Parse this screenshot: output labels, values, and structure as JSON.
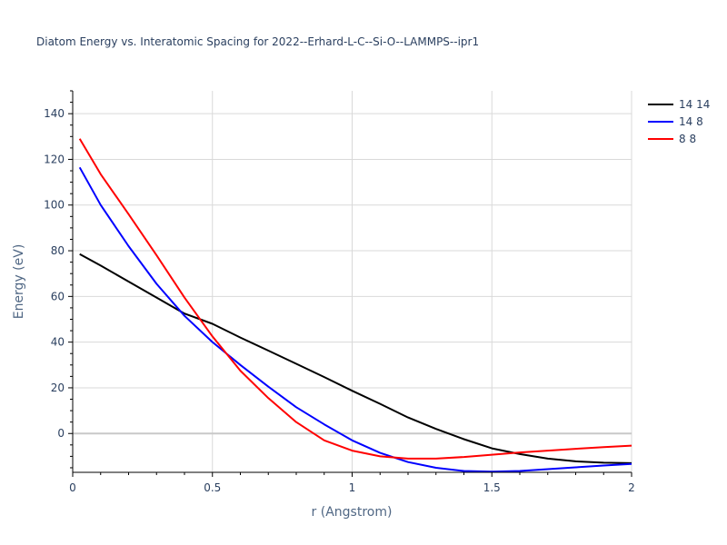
{
  "chart_data": {
    "type": "line",
    "title": "Diatom Energy vs. Interatomic Spacing for 2022--Erhard-L-C--Si-O--LAMMPS--ipr1",
    "xlabel": "r (Angstrom)",
    "ylabel": "Energy (eV)",
    "xlim": [
      0,
      2
    ],
    "ylim": [
      -17,
      150
    ],
    "x_ticks": [
      0,
      0.5,
      1,
      1.5,
      2
    ],
    "x_tick_labels": [
      "0",
      "0.5",
      "1",
      "1.5",
      "2"
    ],
    "y_ticks": [
      0,
      20,
      40,
      60,
      80,
      100,
      120,
      140
    ],
    "y_tick_labels": [
      "0",
      "20",
      "40",
      "60",
      "80",
      "100",
      "120",
      "140"
    ],
    "grid": true,
    "legend_position": "top-right",
    "series": [
      {
        "name": "14 14",
        "color": "#000000",
        "x": [
          0.025,
          0.1,
          0.2,
          0.3,
          0.4,
          0.5,
          0.6,
          0.7,
          0.8,
          0.9,
          1.0,
          1.1,
          1.2,
          1.3,
          1.4,
          1.5,
          1.6,
          1.7,
          1.8,
          1.9,
          2.0
        ],
        "y": [
          78.5,
          73.5,
          66.5,
          59.5,
          52.5,
          48.0,
          42.0,
          36.3,
          30.5,
          24.7,
          18.7,
          13.0,
          7.0,
          2.0,
          -2.5,
          -6.5,
          -9.0,
          -11.0,
          -12.2,
          -12.8,
          -13.0
        ]
      },
      {
        "name": "14 8",
        "color": "#0000ff",
        "x": [
          0.025,
          0.1,
          0.2,
          0.3,
          0.4,
          0.5,
          0.6,
          0.7,
          0.8,
          0.9,
          1.0,
          1.1,
          1.2,
          1.3,
          1.4,
          1.5,
          1.6,
          1.7,
          1.8,
          1.9,
          2.0
        ],
        "y": [
          116.5,
          100.0,
          82.0,
          65.5,
          51.5,
          40.0,
          30.0,
          20.5,
          11.5,
          4.0,
          -3.0,
          -8.5,
          -12.5,
          -15.0,
          -16.4,
          -16.7,
          -16.4,
          -15.6,
          -14.8,
          -14.0,
          -13.3
        ]
      },
      {
        "name": "8 8",
        "color": "#ff0000",
        "x": [
          0.025,
          0.1,
          0.2,
          0.3,
          0.4,
          0.5,
          0.6,
          0.7,
          0.8,
          0.9,
          1.0,
          1.1,
          1.2,
          1.3,
          1.4,
          1.5,
          1.6,
          1.7,
          1.8,
          1.9,
          2.0
        ],
        "y": [
          129.0,
          113.5,
          96.0,
          78.0,
          59.5,
          42.5,
          27.5,
          15.5,
          5.0,
          -3.0,
          -7.5,
          -10.0,
          -11.0,
          -11.0,
          -10.3,
          -9.3,
          -8.3,
          -7.5,
          -6.7,
          -6.0,
          -5.3
        ]
      }
    ]
  }
}
